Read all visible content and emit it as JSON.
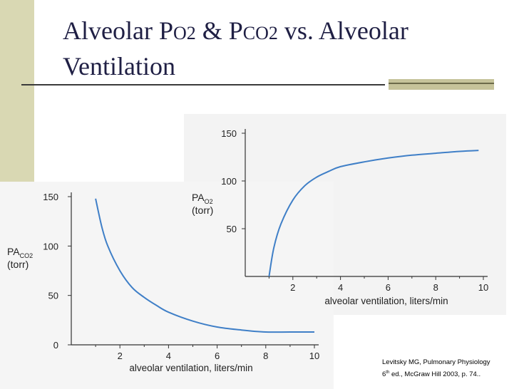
{
  "slide": {
    "title_parts": [
      "Alveolar P",
      "O2",
      " & P",
      "CO2",
      " vs. Alveolar",
      "Ventilation"
    ],
    "citation_line1": "Levitsky MG, Pulmonary Physiology",
    "citation_line2_pre": "6",
    "citation_line2_sup": "th",
    "citation_line2_post": " ed., McGraw Hill 2003, p. 74..",
    "colors": {
      "sidebar": "#d9d8b3",
      "title": "#1f1f44",
      "curve": "#3f7fc7",
      "scan_bg": "#f3f3f3"
    }
  },
  "chart_data": [
    {
      "type": "line",
      "ylabel_main": "PA",
      "ylabel_sub": "O2",
      "ylabel_unit": "(torr)",
      "xlabel": "alveolar ventilation, liters/min",
      "xlim": [
        0,
        10
      ],
      "ylim": [
        0,
        150
      ],
      "xticks": [
        "2",
        "4",
        "6",
        "8",
        "10"
      ],
      "yticks": [
        "50",
        "100",
        "150"
      ],
      "series": [
        {
          "x": [
            1.0,
            1.2,
            1.5,
            2.0,
            2.5,
            3.0,
            3.5,
            4.0,
            5.0,
            6.0,
            7.0,
            8.0,
            9.0,
            9.8
          ],
          "y": [
            0,
            30,
            55,
            80,
            95,
            104,
            110,
            115,
            120,
            124,
            127,
            129,
            131,
            132
          ]
        }
      ]
    },
    {
      "type": "line",
      "ylabel_main": "PA",
      "ylabel_sub": "CO2",
      "ylabel_unit": "(torr)",
      "xlabel": "alveolar ventilation, liters/min",
      "xlim": [
        0,
        10
      ],
      "ylim": [
        0,
        150
      ],
      "xticks": [
        "2",
        "4",
        "6",
        "8",
        "10"
      ],
      "yticks": [
        "0",
        "50",
        "100",
        "150"
      ],
      "series": [
        {
          "x": [
            1.0,
            1.25,
            1.5,
            2.0,
            2.5,
            3.0,
            3.5,
            4.0,
            5.0,
            6.0,
            7.0,
            8.0,
            9.0,
            10.0
          ],
          "y": [
            148,
            120,
            100,
            75,
            58,
            48,
            40,
            33,
            24,
            18,
            15,
            13,
            13,
            13
          ]
        }
      ]
    }
  ]
}
